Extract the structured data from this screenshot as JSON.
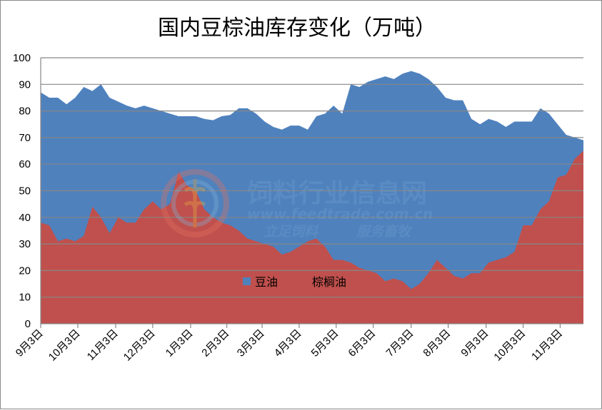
{
  "chart_data": {
    "type": "area",
    "title": "国内豆棕油库存变化（万吨）",
    "xlabel": "",
    "ylabel": "",
    "ylim": [
      0,
      100
    ],
    "y_ticks": [
      "0",
      "10",
      "20",
      "30",
      "40",
      "50",
      "60",
      "70",
      "80",
      "90",
      "100"
    ],
    "x_tick_labels": [
      "9月3日",
      "10月3日",
      "11月3日",
      "12月3日",
      "1月3日",
      "2月3日",
      "3月3日",
      "4月3日",
      "5月3日",
      "6月3日",
      "7月3日",
      "8月3日",
      "9月3日",
      "10月3日",
      "11月3日"
    ],
    "x_tick_weeks": [
      0,
      4.3,
      8.7,
      13,
      17.4,
      21.6,
      25.7,
      30,
      34.3,
      38.6,
      43,
      47.3,
      51.7,
      56,
      60.3
    ],
    "weeks": 63,
    "grid": true,
    "legend_position": "bottom-center",
    "series": [
      {
        "name": "豆油",
        "color": "#4f81bd",
        "values": [
          87,
          85,
          85,
          82.5,
          85,
          89,
          87.5,
          90,
          85,
          83.5,
          82,
          81,
          82,
          81,
          80,
          79,
          78,
          78,
          78,
          77,
          76.5,
          78,
          78.5,
          81,
          81,
          79,
          76,
          74,
          73,
          74.5,
          74.5,
          73,
          78,
          79,
          82,
          79,
          90,
          89,
          91,
          92,
          93,
          92,
          94,
          95,
          94,
          92,
          89,
          85,
          84,
          84,
          77,
          75,
          77,
          76,
          74,
          76,
          76,
          76,
          81,
          79,
          75,
          71,
          70,
          69
        ]
      },
      {
        "name": "棕榈油",
        "color": "#c0504d",
        "values": [
          38,
          37,
          31,
          32,
          31,
          33,
          44,
          40,
          34,
          40,
          38,
          38,
          43,
          46,
          43,
          45,
          57,
          52,
          50,
          43,
          40,
          38,
          37,
          35,
          32,
          31,
          30,
          29,
          26,
          27,
          29,
          31,
          32,
          29,
          24,
          24,
          23,
          21,
          20,
          19,
          16,
          17,
          16,
          13,
          15,
          19,
          24,
          21,
          18,
          17,
          19,
          19,
          23,
          24,
          25,
          27,
          37,
          37,
          43,
          46,
          55,
          56,
          62,
          65
        ]
      }
    ]
  },
  "watermark": {
    "name_cn": "饲料行业信息网",
    "url": "www.feedtrade.com.cn",
    "slogan_left": "立足饲料",
    "slogan_right": "服务畜牧"
  }
}
